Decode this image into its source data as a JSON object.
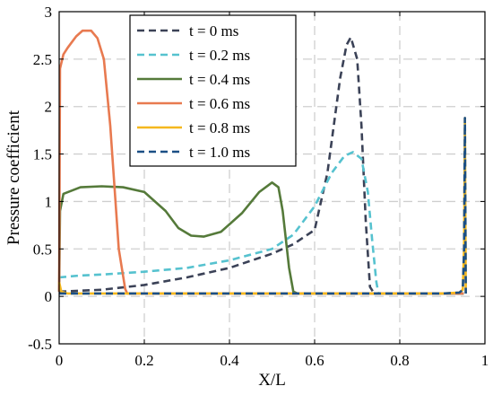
{
  "chart_data": {
    "type": "line",
    "xlabel": "X/L",
    "ylabel": "Pressure coefficient",
    "xlim": [
      0,
      1
    ],
    "ylim": [
      -0.5,
      3
    ],
    "x_ticks": [
      0,
      0.2,
      0.4,
      0.6,
      0.8,
      1
    ],
    "y_ticks": [
      -0.5,
      0,
      0.5,
      1,
      1.5,
      2,
      2.5,
      3
    ],
    "x_tick_labels": [
      "0",
      "0.2",
      "0.4",
      "0.6",
      "0.8",
      "1"
    ],
    "y_tick_labels": [
      "-0.5",
      "0",
      "0.5",
      "1",
      "1.5",
      "2",
      "2.5",
      "3"
    ],
    "grid": true,
    "legend_position": "top-left",
    "series": [
      {
        "name": "t = 0 ms",
        "color": "#3b4257",
        "dashed": true,
        "points": [
          [
            0,
            0.05
          ],
          [
            0.1,
            0.07
          ],
          [
            0.2,
            0.12
          ],
          [
            0.3,
            0.2
          ],
          [
            0.4,
            0.3
          ],
          [
            0.5,
            0.45
          ],
          [
            0.55,
            0.55
          ],
          [
            0.6,
            0.7
          ],
          [
            0.63,
            1.3
          ],
          [
            0.66,
            2.3
          ],
          [
            0.675,
            2.65
          ],
          [
            0.685,
            2.73
          ],
          [
            0.7,
            2.5
          ],
          [
            0.71,
            1.8
          ],
          [
            0.72,
            0.8
          ],
          [
            0.73,
            0.1
          ],
          [
            0.74,
            0.03
          ],
          [
            0.8,
            0.03
          ],
          [
            0.9,
            0.03
          ],
          [
            0.95,
            0.03
          ]
        ]
      },
      {
        "name": "t = 0.2 ms",
        "color": "#56c2cf",
        "dashed": true,
        "points": [
          [
            0,
            0.2
          ],
          [
            0.05,
            0.22
          ],
          [
            0.1,
            0.23
          ],
          [
            0.2,
            0.26
          ],
          [
            0.3,
            0.3
          ],
          [
            0.4,
            0.38
          ],
          [
            0.5,
            0.5
          ],
          [
            0.55,
            0.65
          ],
          [
            0.6,
            0.95
          ],
          [
            0.64,
            1.3
          ],
          [
            0.67,
            1.48
          ],
          [
            0.69,
            1.52
          ],
          [
            0.71,
            1.45
          ],
          [
            0.725,
            1.1
          ],
          [
            0.735,
            0.6
          ],
          [
            0.745,
            0.15
          ],
          [
            0.75,
            0.03
          ],
          [
            0.8,
            0.03
          ],
          [
            0.9,
            0.03
          ],
          [
            0.95,
            0.03
          ]
        ]
      },
      {
        "name": "t = 0.4 ms",
        "color": "#557a3a",
        "dashed": false,
        "points": [
          [
            0,
            0.05
          ],
          [
            0.002,
            0.9
          ],
          [
            0.01,
            1.08
          ],
          [
            0.05,
            1.15
          ],
          [
            0.1,
            1.16
          ],
          [
            0.15,
            1.15
          ],
          [
            0.2,
            1.1
          ],
          [
            0.25,
            0.9
          ],
          [
            0.28,
            0.72
          ],
          [
            0.31,
            0.64
          ],
          [
            0.34,
            0.63
          ],
          [
            0.38,
            0.68
          ],
          [
            0.43,
            0.88
          ],
          [
            0.47,
            1.1
          ],
          [
            0.5,
            1.2
          ],
          [
            0.515,
            1.15
          ],
          [
            0.525,
            0.9
          ],
          [
            0.54,
            0.3
          ],
          [
            0.55,
            0.05
          ],
          [
            0.56,
            0.03
          ],
          [
            0.6,
            0.03
          ],
          [
            0.8,
            0.03
          ],
          [
            0.95,
            0.03
          ]
        ]
      },
      {
        "name": "t = 0.6 ms",
        "color": "#e87a50",
        "dashed": false,
        "points": [
          [
            0,
            0.05
          ],
          [
            0.002,
            2.4
          ],
          [
            0.01,
            2.55
          ],
          [
            0.02,
            2.62
          ],
          [
            0.03,
            2.68
          ],
          [
            0.04,
            2.74
          ],
          [
            0.055,
            2.8
          ],
          [
            0.075,
            2.8
          ],
          [
            0.09,
            2.72
          ],
          [
            0.105,
            2.5
          ],
          [
            0.12,
            1.8
          ],
          [
            0.14,
            0.5
          ],
          [
            0.155,
            0.08
          ],
          [
            0.16,
            0.03
          ],
          [
            0.2,
            0.03
          ],
          [
            0.5,
            0.03
          ],
          [
            0.8,
            0.03
          ],
          [
            0.95,
            0.03
          ]
        ]
      },
      {
        "name": "t = 0.8 ms",
        "color": "#f5b81e",
        "dashed": false,
        "points": [
          [
            0,
            0.15
          ],
          [
            0.005,
            0.05
          ],
          [
            0.02,
            0.03
          ],
          [
            0.1,
            0.03
          ],
          [
            0.3,
            0.03
          ],
          [
            0.5,
            0.03
          ],
          [
            0.7,
            0.03
          ],
          [
            0.9,
            0.03
          ],
          [
            0.94,
            0.04
          ],
          [
            0.948,
            0.07
          ],
          [
            0.951,
            0.5
          ],
          [
            0.953,
            1.88
          ],
          [
            0.955,
            0.03
          ]
        ]
      },
      {
        "name": "t = 1.0 ms",
        "color": "#1b4f85",
        "dashed": true,
        "points": [
          [
            0,
            0.03
          ],
          [
            0.1,
            0.03
          ],
          [
            0.3,
            0.03
          ],
          [
            0.5,
            0.03
          ],
          [
            0.7,
            0.03
          ],
          [
            0.9,
            0.03
          ],
          [
            0.94,
            0.04
          ],
          [
            0.948,
            0.07
          ],
          [
            0.951,
            0.5
          ],
          [
            0.953,
            1.88
          ],
          [
            0.955,
            0.03
          ]
        ]
      }
    ]
  }
}
